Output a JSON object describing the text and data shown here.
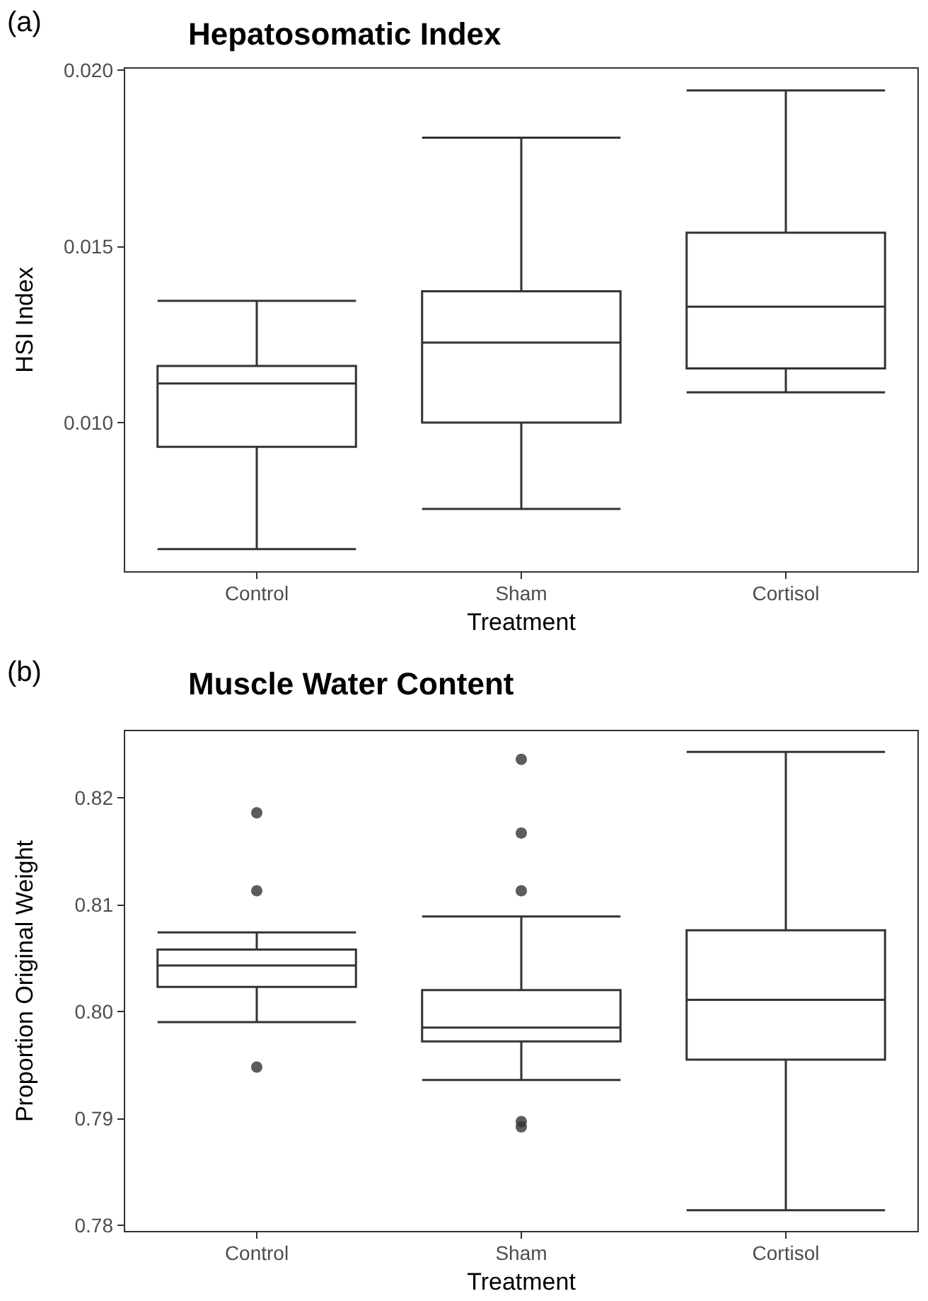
{
  "chart_data": [
    {
      "type": "box",
      "title": "Hepatosomatic Index",
      "xlabel": "Treatment",
      "ylabel": "HSI Index",
      "annotations": [
        "(a)"
      ],
      "categories": [
        "Control",
        "Sham",
        "Cortisol"
      ],
      "boxes": [
        {
          "low": 0.00641,
          "q1": 0.00931,
          "median": 0.01111,
          "q3": 0.01161,
          "high": 0.01346
        },
        {
          "low": 0.00755,
          "q1": 0.01,
          "median": 0.01227,
          "q3": 0.01373,
          "high": 0.01809
        },
        {
          "low": 0.01086,
          "q1": 0.01154,
          "median": 0.01329,
          "q3": 0.01539,
          "high": 0.01943
        }
      ],
      "color": "#333333",
      "ylim": [
        0.00576,
        0.02007
      ],
      "yticks": [
        {
          "value": 0.01,
          "label": "0.010"
        },
        {
          "value": 0.015,
          "label": "0.015"
        },
        {
          "value": 0.02,
          "label": "0.020"
        }
      ],
      "grid": false
    },
    {
      "type": "box",
      "title": "Muscle Water Content",
      "xlabel": "Treatment",
      "ylabel": "Proportion Original Weight",
      "annotations": [
        "(b)"
      ],
      "categories": [
        "Control",
        "Sham",
        "Cortisol"
      ],
      "boxes": [
        {
          "low": 0.799,
          "q1": 0.8023,
          "median": 0.8043,
          "q3": 0.8058,
          "high": 0.8074,
          "outliers": [
            0.8186,
            0.8113,
            0.7948
          ]
        },
        {
          "low": 0.7936,
          "q1": 0.7972,
          "median": 0.7985,
          "q3": 0.802,
          "high": 0.8089,
          "outliers": [
            0.8236,
            0.8167,
            0.8113,
            0.7897,
            0.7892
          ]
        },
        {
          "low": 0.7814,
          "q1": 0.7955,
          "median": 0.8011,
          "q3": 0.8076,
          "high": 0.8243
        }
      ],
      "color": "#333333",
      "ylim": [
        0.7794,
        0.8263
      ],
      "yticks": [
        {
          "value": 0.78,
          "label": "0.78"
        },
        {
          "value": 0.79,
          "label": "0.79"
        },
        {
          "value": 0.8,
          "label": "0.80"
        },
        {
          "value": 0.81,
          "label": "0.81"
        },
        {
          "value": 0.82,
          "label": "0.82"
        }
      ],
      "grid": false
    }
  ]
}
